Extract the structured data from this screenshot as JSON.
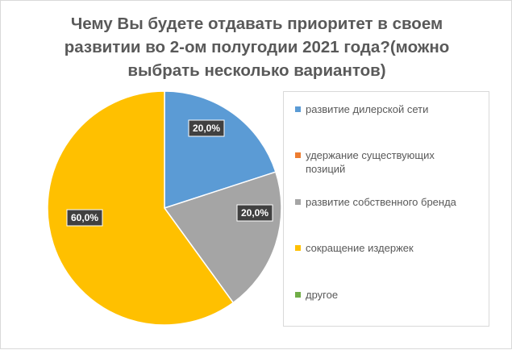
{
  "chart_data": {
    "type": "pie",
    "title": "Чему Вы будете отдавать приоритет в своем развитии во 2-ом полугодии 2021 года?(можно выбрать несколько вариантов)",
    "title_lines": [
      "Чему Вы будете отдавать приоритет в своем",
      "развитии во 2-ом полугодии 2021 года?(можно",
      "выбрать несколько вариантов)"
    ],
    "categories": [
      "развитие дилерской сети",
      "удержание существующих позиций",
      "развитие собственного бренда",
      "сокращение издержек",
      "другое"
    ],
    "legend_lines": [
      [
        "развитие дилерской сети"
      ],
      [
        "удержание существующих",
        "позиций"
      ],
      [
        "развитие собственного бренда"
      ],
      [
        "сокращение издержек"
      ],
      [
        "другое"
      ]
    ],
    "values": [
      0.2,
      0.0,
      0.2,
      0.6,
      0.0
    ],
    "data_labels": [
      "20,0%",
      "",
      "20,0%",
      "60,0%",
      ""
    ],
    "colors": [
      "#5b9bd5",
      "#ed7d31",
      "#a5a5a5",
      "#ffc000",
      "#70ad47"
    ],
    "legend_position": "right",
    "start_angle_deg": 0,
    "direction": "clockwise"
  }
}
